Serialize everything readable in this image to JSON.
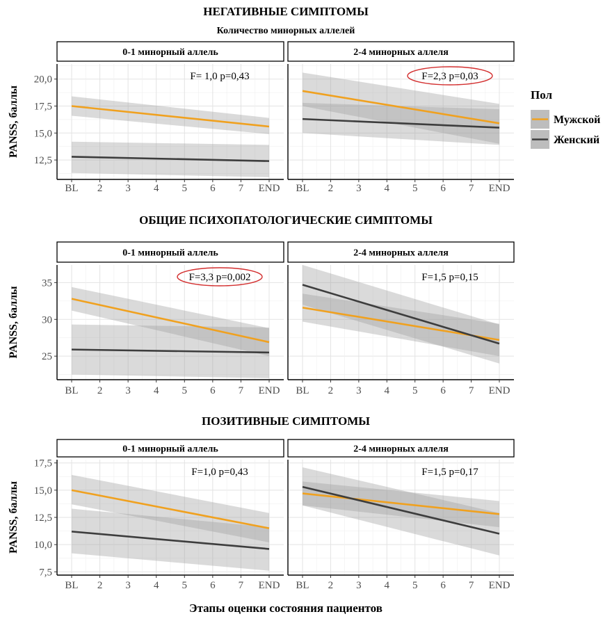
{
  "x_axis_label": "Этапы оценки состояния пациентов",
  "y_axis_label": "PANSS, баллы",
  "legend": {
    "title": "Пол",
    "items": [
      {
        "label": "Мужской",
        "color": "#f0a11f"
      },
      {
        "label": "Женский",
        "color": "#3d3d3d"
      }
    ],
    "placement": "right"
  },
  "chart_data": [
    {
      "type": "line",
      "title": "НЕГАТИВНЫЕ СИМПТОМЫ",
      "subtitle": "Количество минорных аллелей",
      "ylabel": "PANSS, баллы",
      "xlabel": "Этапы оценки состояния пациентов",
      "x_ticks": [
        "BL",
        "2",
        "3",
        "4",
        "5",
        "6",
        "7",
        "END"
      ],
      "y_ticks": [
        "12,5",
        "15,0",
        "17,5",
        "20,0"
      ],
      "y_tick_values": [
        12.5,
        15.0,
        17.5,
        20.0
      ],
      "ylim": [
        10.7,
        21.4
      ],
      "grid": true,
      "panels": [
        {
          "label": "0-1 минорный аллель",
          "stat": "F= 1,0  p=0,43",
          "stat_highlighted": false,
          "series": [
            {
              "name": "Мужской",
              "start": 17.5,
              "end": 15.6,
              "ci_start": [
                16.6,
                18.4
              ],
              "ci_end": [
                14.9,
                16.4
              ]
            },
            {
              "name": "Женский",
              "start": 12.8,
              "end": 12.4,
              "ci_start": [
                11.3,
                14.2
              ],
              "ci_end": [
                10.9,
                13.9
              ]
            }
          ]
        },
        {
          "label": "2-4 минорных аллеля",
          "stat": "F=2,3  p=0,03",
          "stat_highlighted": true,
          "series": [
            {
              "name": "Мужской",
              "start": 18.9,
              "end": 15.9,
              "ci_start": [
                17.5,
                20.6
              ],
              "ci_end": [
                14.0,
                17.7
              ]
            },
            {
              "name": "Женский",
              "start": 16.3,
              "end": 15.5,
              "ci_start": [
                15.0,
                17.8
              ],
              "ci_end": [
                13.9,
                17.2
              ]
            }
          ]
        }
      ]
    },
    {
      "type": "line",
      "title": "ОБЩИЕ ПСИХОПАТОЛОГИЧЕСКИЕ СИМПТОМЫ",
      "ylabel": "PANSS, баллы",
      "xlabel": "Этапы оценки состояния пациентов",
      "x_ticks": [
        "BL",
        "2",
        "3",
        "4",
        "5",
        "6",
        "7",
        "END"
      ],
      "y_ticks": [
        "25",
        "30",
        "35"
      ],
      "y_tick_values": [
        25,
        30,
        35
      ],
      "ylim": [
        21.8,
        37.4
      ],
      "grid": true,
      "panels": [
        {
          "label": "0-1 минорный аллель",
          "stat": "F=3,3  p=0,002",
          "stat_highlighted": true,
          "series": [
            {
              "name": "Мужской",
              "start": 32.8,
              "end": 26.9,
              "ci_start": [
                31.2,
                34.4
              ],
              "ci_end": [
                25.0,
                28.8
              ]
            },
            {
              "name": "Женский",
              "start": 25.9,
              "end": 25.5,
              "ci_start": [
                22.5,
                29.3
              ],
              "ci_end": [
                22.0,
                28.9
              ]
            }
          ]
        },
        {
          "label": "2-4 минорных аллеля",
          "stat": "F=1,5  p=0,15",
          "stat_highlighted": false,
          "series": [
            {
              "name": "Мужской",
              "start": 31.6,
              "end": 27.2,
              "ci_start": [
                29.7,
                33.5
              ],
              "ci_end": [
                25.0,
                29.4
              ]
            },
            {
              "name": "Женский",
              "start": 34.7,
              "end": 26.7,
              "ci_start": [
                32.0,
                37.4
              ],
              "ci_end": [
                24.0,
                29.3
              ]
            }
          ]
        }
      ]
    },
    {
      "type": "line",
      "title": "ПОЗИТИВНЫЕ СИМПТОМЫ",
      "ylabel": "PANSS, баллы",
      "xlabel": "Этапы оценки состояния пациентов",
      "x_ticks": [
        "BL",
        "2",
        "3",
        "4",
        "5",
        "6",
        "7",
        "END"
      ],
      "y_ticks": [
        "7,5",
        "10,0",
        "12,5",
        "15,0",
        "17,5"
      ],
      "y_tick_values": [
        7.5,
        10.0,
        12.5,
        15.0,
        17.5
      ],
      "ylim": [
        7.2,
        17.8
      ],
      "grid": true,
      "panels": [
        {
          "label": "0-1 минорный аллель",
          "stat": "F=1,0  p=0,43",
          "stat_highlighted": false,
          "series": [
            {
              "name": "Мужской",
              "start": 15.0,
              "end": 11.5,
              "ci_start": [
                13.7,
                16.4
              ],
              "ci_end": [
                10.2,
                12.9
              ]
            },
            {
              "name": "Женский",
              "start": 11.2,
              "end": 9.6,
              "ci_start": [
                9.2,
                13.3
              ],
              "ci_end": [
                7.6,
                11.6
              ]
            }
          ]
        },
        {
          "label": "2-4 минорных аллеля",
          "stat": "F=1,5  p=0,17",
          "stat_highlighted": false,
          "series": [
            {
              "name": "Мужской",
              "start": 14.7,
              "end": 12.8,
              "ci_start": [
                13.6,
                15.8
              ],
              "ci_end": [
                11.6,
                14.0
              ]
            },
            {
              "name": "Женский",
              "start": 15.3,
              "end": 11.0,
              "ci_start": [
                13.6,
                17.1
              ],
              "ci_end": [
                9.0,
                12.9
              ]
            }
          ]
        }
      ]
    }
  ]
}
